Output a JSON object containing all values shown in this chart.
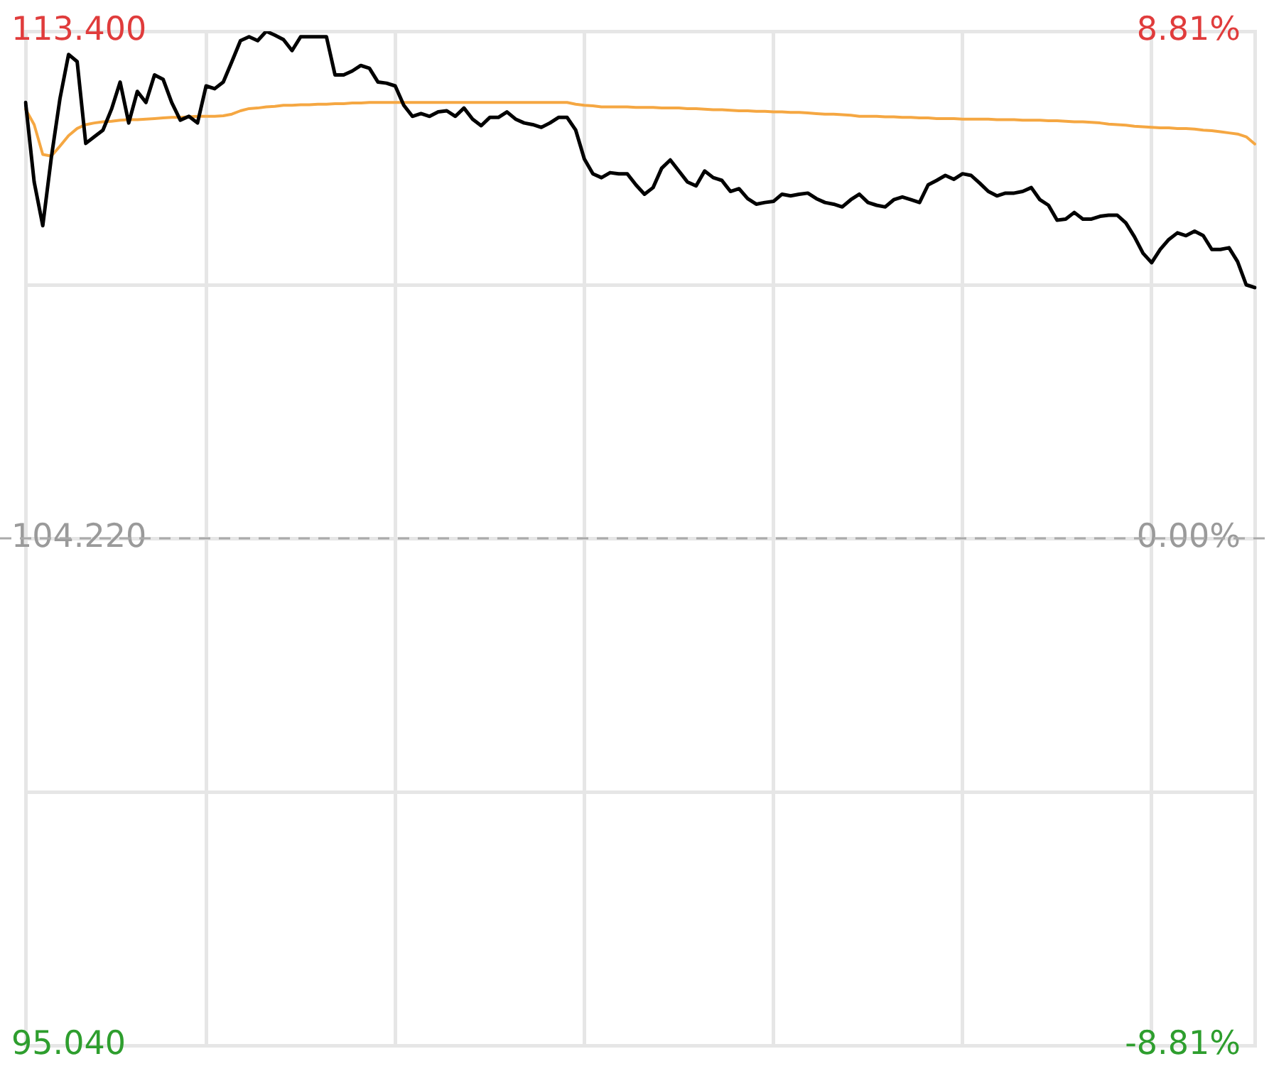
{
  "chart_data": {
    "type": "line",
    "categories": [
      null,
      null,
      null,
      null,
      null,
      null,
      null,
      null,
      null,
      null,
      null,
      null,
      null,
      null,
      null,
      null,
      null,
      null,
      null,
      null,
      null,
      null,
      null,
      null,
      null,
      null,
      null,
      null,
      null,
      null,
      null,
      null,
      null,
      null,
      null,
      null,
      null,
      null,
      null,
      null,
      null,
      null,
      null,
      null,
      null,
      null,
      null,
      null,
      null,
      null,
      null,
      null,
      null,
      null,
      null,
      null,
      null,
      null,
      null,
      null,
      null,
      null,
      null,
      null,
      null,
      null,
      null,
      null,
      null,
      null,
      null,
      null,
      null,
      null,
      null,
      null,
      null,
      null,
      null,
      null,
      null,
      null,
      null,
      null,
      null,
      null,
      null,
      null,
      null,
      null,
      null,
      null,
      null,
      null,
      null,
      null,
      null,
      null,
      null,
      null,
      null,
      null,
      null,
      null,
      null,
      null,
      null,
      null,
      null,
      null,
      null,
      null,
      null,
      null,
      null,
      null,
      null,
      null,
      null,
      null,
      null,
      null,
      null,
      null,
      null,
      null,
      null,
      null,
      null,
      null,
      null,
      null,
      null,
      null,
      null,
      null,
      null,
      null,
      null,
      null,
      null,
      null,
      null,
      null
    ],
    "series": [
      {
        "color": "#000000",
        "values": [
          112.11,
          110.67,
          109.88,
          111.12,
          112.18,
          112.98,
          112.85,
          111.37,
          111.49,
          111.61,
          111.99,
          112.48,
          111.74,
          112.31,
          112.11,
          112.61,
          112.53,
          112.11,
          111.79,
          111.86,
          111.74,
          112.41,
          112.36,
          112.48,
          112.85,
          113.23,
          113.3,
          113.23,
          113.4,
          113.33,
          113.25,
          113.05,
          113.3,
          113.3,
          113.3,
          113.3,
          112.61,
          112.61,
          112.68,
          112.78,
          112.73,
          112.48,
          112.46,
          112.41,
          112.06,
          111.86,
          111.91,
          111.86,
          111.94,
          111.96,
          111.86,
          112.01,
          111.81,
          111.69,
          111.84,
          111.84,
          111.94,
          111.81,
          111.74,
          111.71,
          111.66,
          111.74,
          111.84,
          111.84,
          111.61,
          111.09,
          110.82,
          110.75,
          110.84,
          110.82,
          110.82,
          110.62,
          110.45,
          110.57,
          110.92,
          111.07,
          110.87,
          110.67,
          110.6,
          110.87,
          110.75,
          110.7,
          110.5,
          110.55,
          110.37,
          110.27,
          110.3,
          110.32,
          110.45,
          110.42,
          110.45,
          110.47,
          110.37,
          110.3,
          110.27,
          110.22,
          110.35,
          110.45,
          110.3,
          110.25,
          110.22,
          110.35,
          110.4,
          110.35,
          110.3,
          110.62,
          110.7,
          110.79,
          110.72,
          110.82,
          110.79,
          110.65,
          110.5,
          110.42,
          110.47,
          110.47,
          110.5,
          110.57,
          110.35,
          110.25,
          109.98,
          110.0,
          110.12,
          110.0,
          110.0,
          110.05,
          110.07,
          110.07,
          109.93,
          109.68,
          109.38,
          109.21,
          109.45,
          109.63,
          109.75,
          109.7,
          109.78,
          109.7,
          109.45,
          109.45,
          109.48,
          109.23,
          108.81,
          108.76
        ]
      },
      {
        "color": "#f5a742",
        "values": [
          111.99,
          111.71,
          111.17,
          111.14,
          111.32,
          111.51,
          111.64,
          111.71,
          111.74,
          111.76,
          111.77,
          111.79,
          111.8,
          111.8,
          111.81,
          111.82,
          111.83,
          111.84,
          111.84,
          111.85,
          111.86,
          111.86,
          111.86,
          111.87,
          111.9,
          111.96,
          112.0,
          112.01,
          112.03,
          112.04,
          112.06,
          112.06,
          112.07,
          112.07,
          112.08,
          112.08,
          112.09,
          112.09,
          112.1,
          112.1,
          112.11,
          112.11,
          112.11,
          112.11,
          112.11,
          112.11,
          112.11,
          112.11,
          112.11,
          112.11,
          112.11,
          112.11,
          112.11,
          112.11,
          112.11,
          112.11,
          112.11,
          112.11,
          112.11,
          112.11,
          112.11,
          112.11,
          112.11,
          112.11,
          112.08,
          112.06,
          112.05,
          112.03,
          112.03,
          112.03,
          112.03,
          112.02,
          112.02,
          112.02,
          112.01,
          112.01,
          112.01,
          112.0,
          112.0,
          111.99,
          111.98,
          111.98,
          111.97,
          111.96,
          111.96,
          111.95,
          111.95,
          111.94,
          111.94,
          111.93,
          111.93,
          111.92,
          111.91,
          111.9,
          111.9,
          111.89,
          111.88,
          111.86,
          111.86,
          111.86,
          111.85,
          111.85,
          111.84,
          111.84,
          111.83,
          111.83,
          111.82,
          111.82,
          111.82,
          111.81,
          111.81,
          111.81,
          111.81,
          111.8,
          111.8,
          111.8,
          111.79,
          111.79,
          111.79,
          111.78,
          111.78,
          111.77,
          111.76,
          111.76,
          111.75,
          111.74,
          111.72,
          111.71,
          111.7,
          111.68,
          111.67,
          111.66,
          111.65,
          111.65,
          111.64,
          111.64,
          111.63,
          111.61,
          111.6,
          111.58,
          111.56,
          111.54,
          111.49,
          111.36
        ]
      }
    ],
    "ylim": [
      95.04,
      113.4
    ],
    "yticks": [
      {
        "value": 95.04,
        "label": "95.040"
      },
      {
        "value": 99.63,
        "label": null
      },
      {
        "value": 104.22,
        "label": "104.220"
      },
      {
        "value": 108.81,
        "label": null
      },
      {
        "value": 113.4,
        "label": "113.400"
      }
    ],
    "y2lim": [
      -8.81,
      8.81
    ],
    "y2ticks": [
      {
        "value": -8.81,
        "label": "-8.81%"
      },
      {
        "value": 0,
        "label": "0.00%"
      },
      {
        "value": 8.81,
        "label": "8.81%"
      }
    ],
    "ref_lines": [
      {
        "axis": "y",
        "value": 104.22,
        "color": "#aaaaaa",
        "line_style": "dashed"
      }
    ],
    "grid": true,
    "legend": false,
    "marker": "none",
    "line_style": "solid"
  }
}
